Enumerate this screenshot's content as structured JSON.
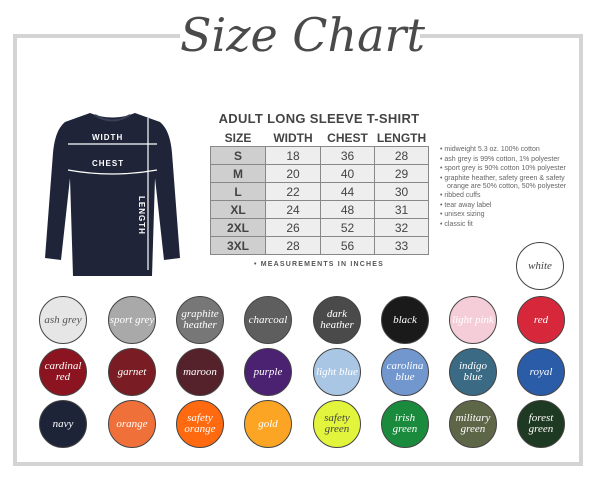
{
  "title": "Size Chart",
  "product_title": "ADULT LONG SLEEVE T-SHIRT",
  "diagram_labels": {
    "width": "WIDTH",
    "chest": "CHEST",
    "length": "LENGTH"
  },
  "table": {
    "headers": [
      "SIZE",
      "WIDTH",
      "CHEST",
      "LENGTH"
    ],
    "rows": [
      [
        "S",
        "18",
        "36",
        "28"
      ],
      [
        "M",
        "20",
        "40",
        "29"
      ],
      [
        "L",
        "22",
        "44",
        "30"
      ],
      [
        "XL",
        "24",
        "48",
        "31"
      ],
      [
        "2XL",
        "26",
        "52",
        "32"
      ],
      [
        "3XL",
        "28",
        "56",
        "33"
      ]
    ]
  },
  "note": "• MEASUREMENTS IN INCHES",
  "features": [
    "midweight 5.3 oz. 100% cotton",
    "ash grey is 99% cotton, 1% polyester",
    "sport grey is 90% cotton 10% polyester",
    "graphite heather, safety green & safety orange are 50% cotton, 50% polyester",
    "ribbed cuffs",
    "tear away label",
    "unisex sizing",
    "classic fit"
  ],
  "colors": [
    {
      "label": "white",
      "hex": "#ffffff",
      "text": "#444444"
    },
    {
      "label": "ash grey",
      "hex": "#e6e6e6",
      "text": "#555555"
    },
    {
      "label": "sport grey",
      "hex": "#a9a9a9",
      "text": "#ffffff"
    },
    {
      "label": "graphite heather",
      "hex": "#777777",
      "text": "#ffffff"
    },
    {
      "label": "charcoal",
      "hex": "#5e5e5e",
      "text": "#ffffff"
    },
    {
      "label": "dark heather",
      "hex": "#4a4a4a",
      "text": "#ffffff"
    },
    {
      "label": "black",
      "hex": "#1a1a1a",
      "text": "#ffffff"
    },
    {
      "label": "light pink",
      "hex": "#f5cdd8",
      "text": "#ffffff"
    },
    {
      "label": "red",
      "hex": "#d6283a",
      "text": "#ffffff"
    },
    {
      "label": "cardinal red",
      "hex": "#8c1420",
      "text": "#ffffff"
    },
    {
      "label": "garnet",
      "hex": "#7a1c24",
      "text": "#ffffff"
    },
    {
      "label": "maroon",
      "hex": "#55222c",
      "text": "#ffffff"
    },
    {
      "label": "purple",
      "hex": "#4b2272",
      "text": "#ffffff"
    },
    {
      "label": "light blue",
      "hex": "#a9c6e4",
      "text": "#ffffff"
    },
    {
      "label": "carolina blue",
      "hex": "#7297cf",
      "text": "#ffffff"
    },
    {
      "label": "indigo blue",
      "hex": "#3a6a84",
      "text": "#ffffff"
    },
    {
      "label": "royal",
      "hex": "#2a5ca8",
      "text": "#ffffff"
    },
    {
      "label": "navy",
      "hex": "#1e2438",
      "text": "#ffffff"
    },
    {
      "label": "orange",
      "hex": "#f0703a",
      "text": "#ffffff"
    },
    {
      "label": "safety orange",
      "hex": "#ff6a10",
      "text": "#ffffff"
    },
    {
      "label": "gold",
      "hex": "#fca524",
      "text": "#ffffff"
    },
    {
      "label": "safety green",
      "hex": "#e2f53c",
      "text": "#444444"
    },
    {
      "label": "irish green",
      "hex": "#1a8a3c",
      "text": "#ffffff"
    },
    {
      "label": "military green",
      "hex": "#5e6648",
      "text": "#ffffff"
    },
    {
      "label": "forest green",
      "hex": "#1f3a22",
      "text": "#ffffff"
    }
  ]
}
